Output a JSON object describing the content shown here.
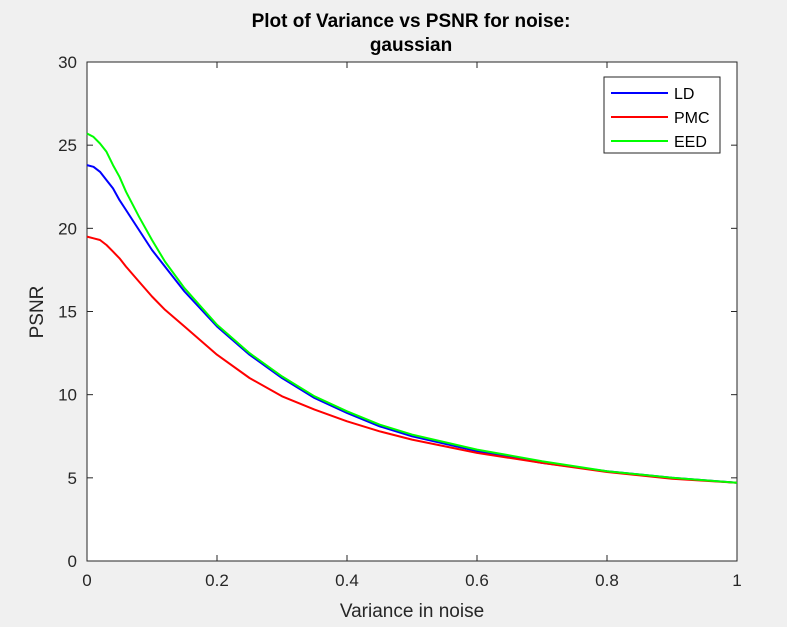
{
  "chart_data": {
    "type": "line",
    "title": [
      "Plot of Variance vs PSNR for noise:",
      "gaussian"
    ],
    "xlabel": "Variance in noise",
    "ylabel": "PSNR",
    "xlim": [
      0,
      1
    ],
    "ylim": [
      0,
      30
    ],
    "xticks": [
      0,
      0.2,
      0.4,
      0.6,
      0.8,
      1
    ],
    "xtick_labels": [
      "0",
      "0.2",
      "0.4",
      "0.6",
      "0.8",
      "1"
    ],
    "yticks": [
      0,
      5,
      10,
      15,
      20,
      25,
      30
    ],
    "ytick_labels": [
      "0",
      "5",
      "10",
      "15",
      "20",
      "25",
      "30"
    ],
    "grid": false,
    "legend_position": "top-right",
    "x": [
      0,
      0.01,
      0.02,
      0.03,
      0.04,
      0.05,
      0.06,
      0.08,
      0.1,
      0.12,
      0.15,
      0.2,
      0.25,
      0.3,
      0.35,
      0.4,
      0.45,
      0.5,
      0.6,
      0.7,
      0.8,
      0.9,
      1.0
    ],
    "series": [
      {
        "name": "LD",
        "color": "#0000ff",
        "values": [
          23.8,
          23.7,
          23.4,
          22.9,
          22.4,
          21.7,
          21.1,
          19.9,
          18.7,
          17.7,
          16.2,
          14.1,
          12.4,
          11.0,
          9.8,
          8.9,
          8.1,
          7.5,
          6.6,
          5.9,
          5.4,
          5.0,
          4.7
        ]
      },
      {
        "name": "PMC",
        "color": "#ff0000",
        "values": [
          19.5,
          19.4,
          19.3,
          19.0,
          18.6,
          18.2,
          17.7,
          16.8,
          15.9,
          15.1,
          14.1,
          12.4,
          11.0,
          9.9,
          9.1,
          8.4,
          7.8,
          7.3,
          6.5,
          5.9,
          5.35,
          4.95,
          4.7
        ]
      },
      {
        "name": "EED",
        "color": "#00ff00",
        "values": [
          25.7,
          25.5,
          25.1,
          24.6,
          23.8,
          23.1,
          22.2,
          20.7,
          19.3,
          18.0,
          16.4,
          14.2,
          12.5,
          11.1,
          9.9,
          9.0,
          8.2,
          7.6,
          6.7,
          6.0,
          5.4,
          5.0,
          4.7
        ]
      }
    ]
  }
}
